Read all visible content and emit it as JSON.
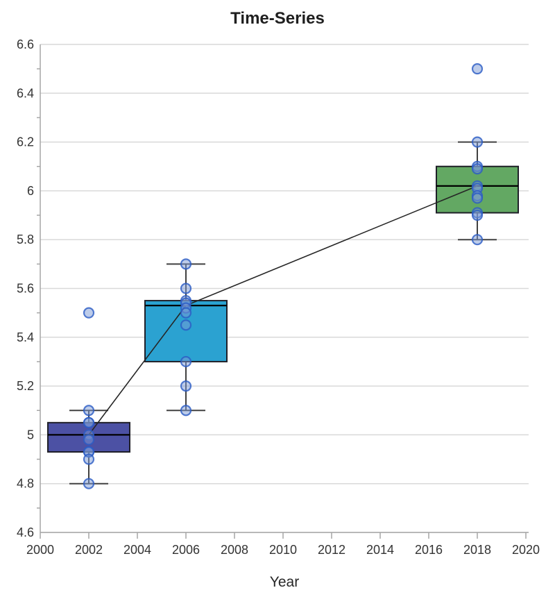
{
  "window": {
    "title": "Time-Series"
  },
  "chart_data": {
    "type": "box+scatter",
    "title": "Time-Series",
    "xlabel": "Year",
    "ylabel": "",
    "xlim": [
      2000,
      2020
    ],
    "ylim": [
      4.6,
      6.6
    ],
    "grid": "horizontal",
    "legend": "none",
    "x_ticks": [
      2000,
      2002,
      2004,
      2006,
      2008,
      2010,
      2012,
      2014,
      2016,
      2018,
      2020
    ],
    "x_tick_labels": [
      "2000",
      "2002",
      "2004",
      "2006",
      "2008",
      "2010",
      "2012",
      "2014",
      "2016",
      "2018",
      "2020"
    ],
    "y_ticks": [
      4.6,
      4.8,
      5.0,
      5.2,
      5.4,
      5.6,
      5.8,
      6.0,
      6.2,
      6.4,
      6.6
    ],
    "y_tick_labels": [
      "4.6",
      "4.8",
      "5",
      "5.2",
      "5.4",
      "5.6",
      "5.8",
      "6",
      "6.2",
      "6.4",
      "6.6"
    ],
    "y_minor_ticks": [
      4.7,
      4.9,
      5.1,
      5.3,
      5.5,
      5.7,
      5.9,
      6.1,
      6.3,
      6.5
    ],
    "boxes": [
      {
        "x": 2002,
        "whisker_low": 4.8,
        "q1": 4.93,
        "median": 5.0,
        "q3": 5.05,
        "whisker_high": 5.1,
        "fill": "#4C51A4"
      },
      {
        "x": 2006,
        "whisker_low": 5.1,
        "q1": 5.3,
        "median": 5.53,
        "q3": 5.55,
        "whisker_high": 5.7,
        "fill": "#2BA2D1"
      },
      {
        "x": 2018,
        "whisker_low": 5.8,
        "q1": 5.91,
        "median": 6.02,
        "q3": 6.1,
        "whisker_high": 6.2,
        "fill": "#63A863"
      }
    ],
    "points": [
      {
        "x": 2002,
        "values": [
          5.5,
          5.1,
          5.05,
          5.05,
          5.0,
          4.98,
          4.93,
          4.93,
          4.9,
          4.8
        ]
      },
      {
        "x": 2006,
        "values": [
          5.7,
          5.6,
          5.55,
          5.54,
          5.52,
          5.5,
          5.45,
          5.3,
          5.2,
          5.1
        ]
      },
      {
        "x": 2018,
        "values": [
          6.5,
          6.2,
          6.1,
          6.09,
          6.02,
          6.01,
          5.98,
          5.97,
          5.91,
          5.9,
          5.8
        ]
      }
    ],
    "median_trend_line": [
      [
        2002,
        5.0
      ],
      [
        2006,
        5.53
      ],
      [
        2018,
        6.02
      ]
    ],
    "style": {
      "grid_color": "#D9D9D9",
      "axis_color": "#A6A6A6",
      "box_border_color": "#1F1F28",
      "whisker_color": "#404040",
      "median_color": "#000000",
      "trend_line_color": "#262626",
      "point_fill": "#7C9AD6",
      "point_stroke": "#2B5BC4",
      "tick_label_color": "#333333",
      "title_color": "#1F1F1F",
      "axis_title_color": "#262626"
    }
  }
}
